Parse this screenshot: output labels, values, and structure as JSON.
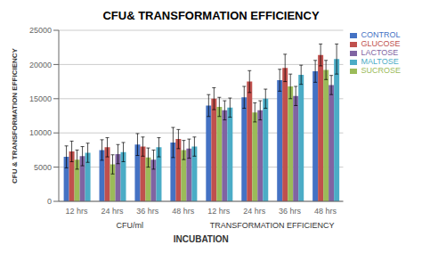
{
  "chart_data": {
    "type": "bar",
    "title": "CFU& TRANSFORMATION EFFICIENCY",
    "xlabel": "INCUBATION",
    "ylabel": "CFU & TRANSFORMATION EFFICIENCY",
    "categories": [
      "12 hrs",
      "24 hrs",
      "36 hrs",
      "48 hrs",
      "12 hrs",
      "24 hrs",
      "36 hrs",
      "48 hrs"
    ],
    "annotations": [
      "CFU/ml",
      "TRANSFORMATION EFFICIENCY"
    ],
    "series": [
      {
        "name": "CONTROL",
        "color": "#4472C4",
        "values": [
          6500,
          7500,
          8300,
          8600,
          14000,
          15200,
          17700,
          19000
        ],
        "errors": [
          1600,
          1500,
          1600,
          2200,
          1600,
          1600,
          1600,
          1600
        ]
      },
      {
        "name": "GLUCOSE",
        "color": "#C0504D",
        "values": [
          7300,
          7900,
          8000,
          9100,
          15000,
          17500,
          19500,
          21400
        ],
        "errors": [
          1500,
          1400,
          1400,
          1400,
          1600,
          1600,
          2000,
          1600
        ]
      },
      {
        "name": "SUCROSE",
        "color": "#9BBB59",
        "values": [
          6100,
          5400,
          6400,
          7500,
          13800,
          13000,
          16800,
          19200
        ],
        "errors": [
          1400,
          1400,
          1400,
          1400,
          1400,
          1400,
          1800,
          1400
        ]
      },
      {
        "name": "LACTOSE",
        "color": "#8064A2",
        "values": [
          6600,
          6900,
          6100,
          7700,
          13300,
          13300,
          15400,
          17000
        ],
        "errors": [
          1400,
          1400,
          1400,
          1400,
          1400,
          1400,
          1400,
          1400
        ]
      },
      {
        "name": "MALTOSE",
        "color": "#4BACC6",
        "values": [
          7100,
          7200,
          7900,
          8000,
          13700,
          15000,
          18500,
          20800
        ],
        "errors": [
          1400,
          1400,
          1400,
          1400,
          1400,
          1400,
          1400,
          2200
        ]
      }
    ],
    "ylim": [
      0,
      25000
    ],
    "yticks": [
      0,
      5000,
      10000,
      15000,
      20000,
      25000
    ],
    "grid": true,
    "legend": "right"
  }
}
